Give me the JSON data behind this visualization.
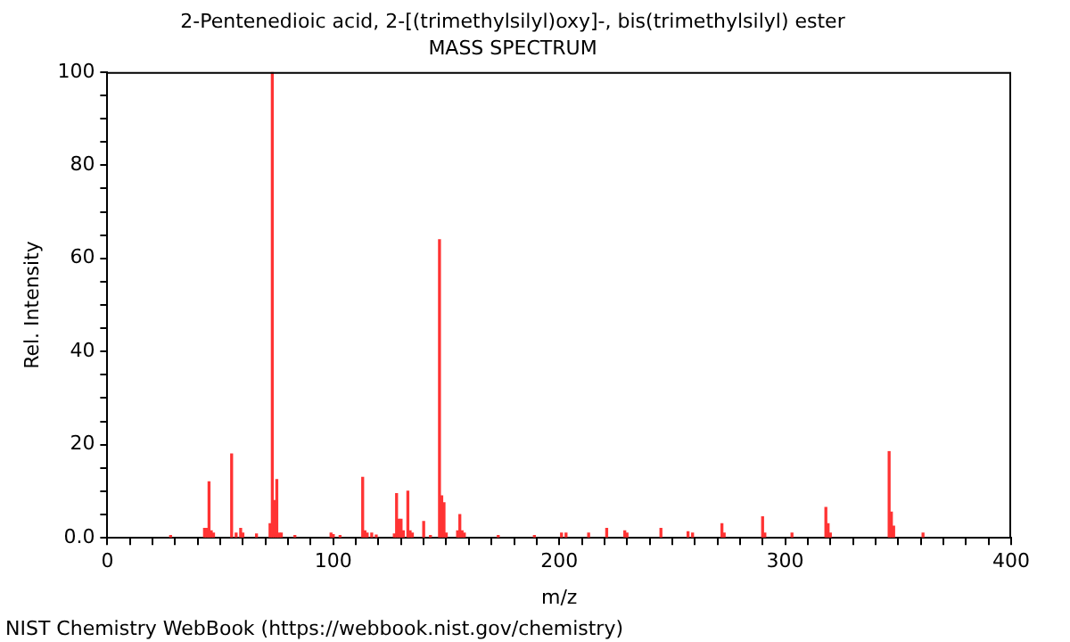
{
  "chart_data": {
    "type": "bar",
    "title": "2-Pentenedioic acid, 2-[(trimethylsilyl)oxy]-, bis(trimethylsilyl) ester",
    "subtitle": "MASS SPECTRUM",
    "xlabel": "m/z",
    "ylabel": "Rel. Intensity",
    "x": [
      28,
      43,
      44,
      45,
      46,
      47,
      55,
      57,
      59,
      60,
      66,
      72,
      73,
      74,
      75,
      76,
      77,
      83,
      99,
      100,
      103,
      113,
      114,
      115,
      117,
      119,
      127,
      128,
      129,
      130,
      131,
      133,
      134,
      135,
      140,
      143,
      147,
      148,
      149,
      150,
      155,
      156,
      157,
      158,
      173,
      189,
      201,
      203,
      213,
      221,
      229,
      230,
      245,
      257,
      259,
      272,
      273,
      290,
      291,
      303,
      318,
      319,
      320,
      346,
      347,
      348,
      361
    ],
    "values": [
      0.5,
      2,
      2,
      12,
      1.5,
      1,
      18,
      1,
      2,
      1,
      0.8,
      3,
      100,
      8,
      12.5,
      1,
      1,
      0.5,
      1,
      0.7,
      0.5,
      13,
      1.5,
      1,
      1,
      0.6,
      0.8,
      9.5,
      4,
      4,
      1.5,
      10,
      1.5,
      1,
      3.5,
      0.5,
      64,
      9,
      7.5,
      1,
      1.5,
      5,
      1.5,
      1,
      0.5,
      0.5,
      1,
      1,
      1,
      2,
      1.5,
      1,
      2,
      1.3,
      1,
      3,
      1,
      4.5,
      1,
      1,
      6.5,
      3,
      1,
      18.5,
      5.5,
      2.5,
      1
    ],
    "color": "#ff3333",
    "grid": false,
    "xlim": [
      0,
      400
    ],
    "xticks": [
      0,
      {
        "value": 10,
        "label": null
      },
      {
        "value": 20,
        "label": null
      },
      {
        "value": 30,
        "label": null
      },
      {
        "value": 40,
        "label": null
      },
      {
        "value": 50,
        "label": null
      },
      {
        "value": 60,
        "label": null
      },
      {
        "value": 70,
        "label": null
      },
      {
        "value": 80,
        "label": null
      },
      {
        "value": 90,
        "label": null
      },
      100,
      {
        "value": 110,
        "label": null
      },
      {
        "value": 120,
        "label": null
      },
      {
        "value": 130,
        "label": null
      },
      {
        "value": 140,
        "label": null
      },
      {
        "value": 150,
        "label": null
      },
      {
        "value": 160,
        "label": null
      },
      {
        "value": 170,
        "label": null
      },
      {
        "value": 180,
        "label": null
      },
      {
        "value": 190,
        "label": null
      },
      200,
      {
        "value": 210,
        "label": null
      },
      {
        "value": 220,
        "label": null
      },
      {
        "value": 230,
        "label": null
      },
      {
        "value": 240,
        "label": null
      },
      {
        "value": 250,
        "label": null
      },
      {
        "value": 260,
        "label": null
      },
      {
        "value": 270,
        "label": null
      },
      {
        "value": 280,
        "label": null
      },
      {
        "value": 290,
        "label": null
      },
      300,
      {
        "value": 310,
        "label": null
      },
      {
        "value": 320,
        "label": null
      },
      {
        "value": 330,
        "label": null
      },
      {
        "value": 340,
        "label": null
      },
      {
        "value": 350,
        "label": null
      },
      {
        "value": 360,
        "label": null
      },
      {
        "value": 370,
        "label": null
      },
      {
        "value": 380,
        "label": null
      },
      {
        "value": 390,
        "label": null
      },
      400
    ],
    "ylim": [
      0,
      100
    ],
    "yticks": [
      {
        "value": 0,
        "label": "0.0"
      },
      {
        "value": 5,
        "label": null
      },
      {
        "value": 10,
        "label": null
      },
      {
        "value": 15,
        "label": null
      },
      20,
      {
        "value": 25,
        "label": null
      },
      {
        "value": 30,
        "label": null
      },
      {
        "value": 35,
        "label": null
      },
      40,
      {
        "value": 45,
        "label": null
      },
      {
        "value": 50,
        "label": null
      },
      {
        "value": 55,
        "label": null
      },
      60,
      {
        "value": 65,
        "label": null
      },
      {
        "value": 70,
        "label": null
      },
      {
        "value": 75,
        "label": null
      },
      80,
      {
        "value": 85,
        "label": null
      },
      {
        "value": 90,
        "label": null
      },
      {
        "value": 95,
        "label": null
      },
      100
    ],
    "annotations": [
      "NIST Chemistry WebBook (https://webbook.nist.gov/chemistry)"
    ]
  }
}
